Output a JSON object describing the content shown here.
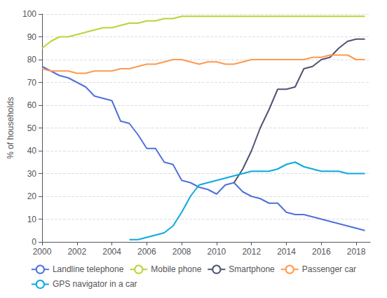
{
  "chart_data": {
    "type": "line",
    "ylabel": "% of households",
    "xlim": [
      2000,
      2018.8
    ],
    "ylim": [
      0,
      100
    ],
    "xticks": [
      2000,
      2002,
      2004,
      2006,
      2008,
      2010,
      2012,
      2014,
      2016,
      2018
    ],
    "yticks": [
      0,
      10,
      20,
      30,
      40,
      50,
      60,
      70,
      80,
      90,
      100
    ],
    "grid": true,
    "legend": "bottom",
    "series": [
      {
        "name": "Landline telephone",
        "x": [
          2000.0,
          2000.5,
          2001.0,
          2001.5,
          2002.0,
          2002.5,
          2003.0,
          2003.5,
          2004.0,
          2004.5,
          2005.0,
          2005.5,
          2006.0,
          2006.5,
          2007.0,
          2007.5,
          2008.0,
          2008.5,
          2009.0,
          2009.5,
          2010.0,
          2010.5,
          2011.0,
          2011.5,
          2012.0,
          2012.5,
          2013.0,
          2013.5,
          2014.0,
          2014.5,
          2015.0,
          2015.5,
          2016.0,
          2016.5,
          2017.0,
          2017.5,
          2018.0,
          2018.5
        ],
        "values": [
          77,
          75,
          73,
          72,
          70,
          68,
          64,
          63,
          62,
          53,
          52,
          47,
          41,
          41,
          35,
          34,
          27,
          26,
          24,
          23,
          21,
          25,
          26,
          22,
          20,
          19,
          17,
          17,
          13,
          12,
          12,
          11,
          10,
          9,
          8,
          7,
          6,
          5
        ]
      },
      {
        "name": "Mobile phone",
        "x": [
          2000.0,
          2000.5,
          2001.0,
          2001.5,
          2002.0,
          2002.5,
          2003.0,
          2003.5,
          2004.0,
          2004.5,
          2005.0,
          2005.5,
          2006.0,
          2006.5,
          2007.0,
          2007.5,
          2008.0,
          2008.5,
          2009.0,
          2009.5,
          2010.0,
          2010.5,
          2011.0,
          2011.5,
          2012.0,
          2012.5,
          2013.0,
          2013.5,
          2014.0,
          2014.5,
          2015.0,
          2015.5,
          2016.0,
          2016.5,
          2017.0,
          2017.5,
          2018.0,
          2018.5
        ],
        "values": [
          85,
          88,
          90,
          90,
          91,
          92,
          93,
          94,
          94,
          95,
          96,
          96,
          97,
          97,
          98,
          98,
          99,
          99,
          99,
          99,
          99,
          99,
          99,
          99,
          99,
          99,
          99,
          99,
          99,
          99,
          99,
          99,
          99,
          99,
          99,
          99,
          99,
          99
        ]
      },
      {
        "name": "Smartphone",
        "x": [
          2011.0,
          2011.5,
          2012.0,
          2012.5,
          2013.0,
          2013.5,
          2014.0,
          2014.5,
          2015.0,
          2015.5,
          2016.0,
          2016.5,
          2017.0,
          2017.5,
          2018.0,
          2018.5
        ],
        "values": [
          26,
          32,
          40,
          50,
          58,
          67,
          67,
          68,
          76,
          77,
          80,
          81,
          85,
          88,
          89,
          89
        ]
      },
      {
        "name": "Passenger car",
        "x": [
          2000.0,
          2000.5,
          2001.0,
          2001.5,
          2002.0,
          2002.5,
          2003.0,
          2003.5,
          2004.0,
          2004.5,
          2005.0,
          2005.5,
          2006.0,
          2006.5,
          2007.0,
          2007.5,
          2008.0,
          2008.5,
          2009.0,
          2009.5,
          2010.0,
          2010.5,
          2011.0,
          2011.5,
          2012.0,
          2012.5,
          2013.0,
          2013.5,
          2014.0,
          2014.5,
          2015.0,
          2015.5,
          2016.0,
          2016.5,
          2017.0,
          2017.5,
          2018.0,
          2018.5
        ],
        "values": [
          76,
          75,
          75,
          75,
          74,
          74,
          75,
          75,
          75,
          76,
          76,
          77,
          78,
          78,
          79,
          80,
          80,
          79,
          78,
          79,
          79,
          78,
          78,
          79,
          80,
          80,
          80,
          80,
          80,
          80,
          80,
          81,
          81,
          82,
          82,
          82,
          80,
          80
        ]
      },
      {
        "name": "GPS navigator in a car",
        "x": [
          2005.0,
          2005.5,
          2006.0,
          2006.5,
          2007.0,
          2007.5,
          2008.0,
          2008.5,
          2009.0,
          2009.5,
          2010.0,
          2010.5,
          2011.0,
          2011.5,
          2012.0,
          2012.5,
          2013.0,
          2013.5,
          2014.0,
          2014.5,
          2015.0,
          2015.5,
          2016.0,
          2016.5,
          2017.0,
          2017.5,
          2018.0,
          2018.5
        ],
        "values": [
          1,
          1,
          2,
          3,
          4,
          7,
          13,
          20,
          25,
          26,
          27,
          28,
          29,
          30,
          31,
          31,
          31,
          32,
          34,
          35,
          33,
          32,
          31,
          31,
          31,
          30,
          30,
          30
        ]
      }
    ]
  }
}
